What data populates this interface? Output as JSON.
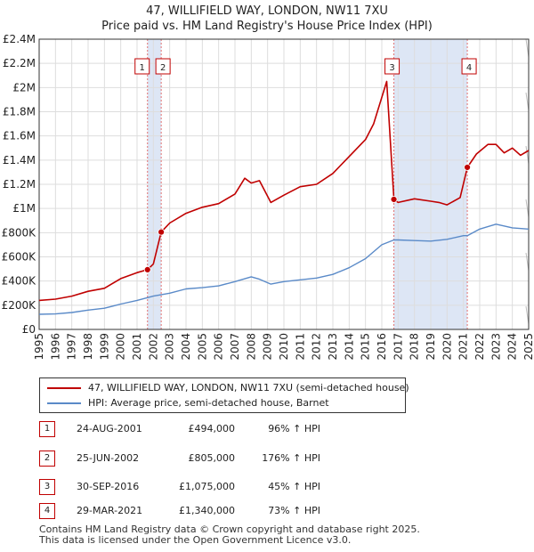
{
  "title_line1": "47, WILLIFIELD WAY, LONDON, NW11 7XU",
  "title_line2": "Price paid vs. HM Land Registry's House Price Index (HPI)",
  "colors": {
    "property": "#c00000",
    "hpi": "#5a8ac8",
    "grid": "#dddddd",
    "shade": "#dde6f5",
    "vline": "#e07070"
  },
  "legend": {
    "property_label": "47, WILLIFIELD WAY, LONDON, NW11 7XU (semi-detached house)",
    "hpi_label": "HPI: Average price, semi-detached house, Barnet"
  },
  "sales": [
    {
      "num": "1",
      "date": "24-AUG-2001",
      "price": "£494,000",
      "hpi": "96% ↑ HPI"
    },
    {
      "num": "2",
      "date": "25-JUN-2002",
      "price": "£805,000",
      "hpi": "176% ↑ HPI"
    },
    {
      "num": "3",
      "date": "30-SEP-2016",
      "price": "£1,075,000",
      "hpi": "45% ↑ HPI"
    },
    {
      "num": "4",
      "date": "29-MAR-2021",
      "price": "£1,340,000",
      "hpi": "73% ↑ HPI"
    }
  ],
  "footer_line1": "Contains HM Land Registry data © Crown copyright and database right 2025.",
  "footer_line2": "This data is licensed under the Open Government Licence v3.0.",
  "chart_data": {
    "type": "line",
    "title": "47, WILLIFIELD WAY, LONDON, NW11 7XU — Price paid vs. HM Land Registry's House Price Index (HPI)",
    "xlabel": "",
    "ylabel": "",
    "xlim": [
      1995,
      2025
    ],
    "ylim": [
      0,
      2400000
    ],
    "grid": true,
    "legend_position": "below",
    "y_ticks": [
      0,
      200000,
      400000,
      600000,
      800000,
      1000000,
      1200000,
      1400000,
      1600000,
      1800000,
      2000000,
      2200000,
      2400000
    ],
    "y_tick_labels": [
      "£0",
      "£200K",
      "£400K",
      "£600K",
      "£800K",
      "£1M",
      "£1.2M",
      "£1.4M",
      "£1.6M",
      "£1.8M",
      "£2M",
      "£2.2M",
      "£2.4M"
    ],
    "x_ticks": [
      1995,
      1996,
      1997,
      1998,
      1999,
      2000,
      2001,
      2002,
      2003,
      2004,
      2005,
      2006,
      2007,
      2008,
      2009,
      2010,
      2011,
      2012,
      2013,
      2014,
      2015,
      2016,
      2017,
      2018,
      2019,
      2020,
      2021,
      2022,
      2023,
      2024,
      2025
    ],
    "x_tick_labels": [
      "1995",
      "1996",
      "1997",
      "1998",
      "1999",
      "2000",
      "2001",
      "2002",
      "2003",
      "2004",
      "2005",
      "2006",
      "2007",
      "2008",
      "2009",
      "2010",
      "2011",
      "2012",
      "2013",
      "2014",
      "2015",
      "2016",
      "2017",
      "2018",
      "2019",
      "2020",
      "2021",
      "2022",
      "2023",
      "2024",
      "2025"
    ],
    "series": [
      {
        "name": "47, WILLIFIELD WAY, LONDON, NW11 7XU (semi-detached house)",
        "x": [
          1995,
          1996,
          1997,
          1998,
          1999,
          2000,
          2001,
          2001.64,
          2002.0,
          2002.48,
          2003,
          2004,
          2005,
          2006,
          2007,
          2007.6,
          2008,
          2008.5,
          2009.2,
          2010,
          2011,
          2012,
          2013,
          2014,
          2015,
          2015.5,
          2016.3,
          2016.74,
          2017,
          2018,
          2019,
          2019.5,
          2020,
          2020.8,
          2021.24,
          2021.8,
          2022.5,
          2023,
          2023.5,
          2024,
          2024.5,
          2025
        ],
        "values": [
          240000,
          250000,
          275000,
          315000,
          340000,
          420000,
          470000,
          494000,
          540000,
          805000,
          880000,
          960000,
          1010000,
          1040000,
          1120000,
          1250000,
          1210000,
          1230000,
          1050000,
          1110000,
          1180000,
          1200000,
          1290000,
          1430000,
          1570000,
          1700000,
          2050000,
          1075000,
          1050000,
          1080000,
          1060000,
          1050000,
          1030000,
          1090000,
          1340000,
          1450000,
          1530000,
          1530000,
          1460000,
          1500000,
          1440000,
          1480000
        ]
      },
      {
        "name": "HPI: Average price, semi-detached house, Barnet",
        "x": [
          1995,
          1996,
          1997,
          1998,
          1999,
          2000,
          2001,
          2002,
          2003,
          2004,
          2005,
          2006,
          2007,
          2008,
          2008.5,
          2009.2,
          2010,
          2011,
          2012,
          2013,
          2014,
          2015,
          2016,
          2016.74,
          2017,
          2018,
          2019,
          2020,
          2021,
          2021.24,
          2022,
          2023,
          2024,
          2025
        ],
        "values": [
          125000,
          128000,
          140000,
          160000,
          175000,
          210000,
          240000,
          275000,
          300000,
          335000,
          345000,
          360000,
          395000,
          435000,
          415000,
          375000,
          395000,
          410000,
          425000,
          455000,
          510000,
          585000,
          700000,
          740000,
          740000,
          735000,
          730000,
          745000,
          775000,
          775000,
          830000,
          870000,
          840000,
          830000
        ]
      }
    ],
    "sales": [
      {
        "label": "1",
        "x": 2001.64,
        "value": 494000
      },
      {
        "label": "2",
        "x": 2002.48,
        "value": 805000
      },
      {
        "label": "3",
        "x": 2016.74,
        "value": 1075000
      },
      {
        "label": "4",
        "x": 2021.24,
        "value": 1340000
      }
    ],
    "shaded_ranges": [
      [
        2001.64,
        2002.48
      ],
      [
        2016.74,
        2021.24
      ]
    ],
    "hatched_range": [
      2025,
      2025.1
    ]
  }
}
